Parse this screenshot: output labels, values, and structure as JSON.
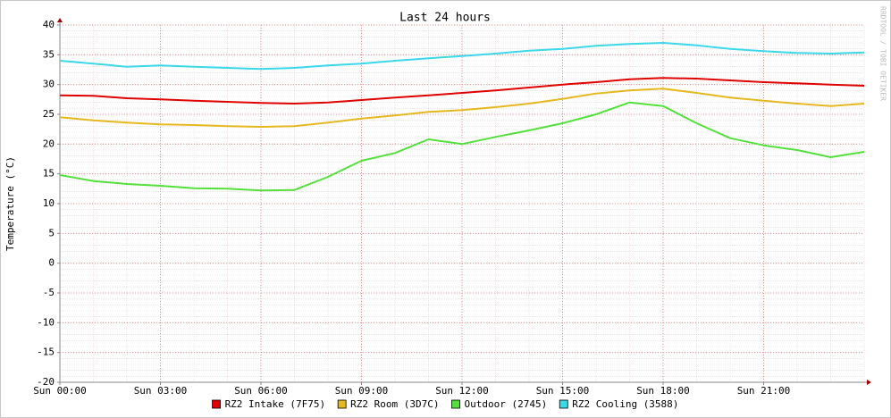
{
  "chart_data": {
    "type": "line",
    "title": "Last 24 hours",
    "y_label": "Temperature (°C)",
    "watermark": "RRDTOOL / TOBI OETIKER",
    "x": [
      0,
      1,
      2,
      3,
      4,
      5,
      6,
      7,
      8,
      9,
      10,
      11,
      12,
      13,
      14,
      15,
      16,
      17,
      18,
      19,
      20,
      21,
      22,
      23,
      24
    ],
    "xlim": [
      0,
      24
    ],
    "xticks": [
      {
        "value": 0,
        "label": "Sun 00:00"
      },
      {
        "value": 3,
        "label": "Sun 03:00"
      },
      {
        "value": 6,
        "label": "Sun 06:00"
      },
      {
        "value": 9,
        "label": "Sun 09:00"
      },
      {
        "value": 12,
        "label": "Sun 12:00"
      },
      {
        "value": 15,
        "label": "Sun 15:00"
      },
      {
        "value": 18,
        "label": "Sun 18:00"
      },
      {
        "value": 21,
        "label": "Sun 21:00"
      }
    ],
    "ylim": [
      -20,
      40
    ],
    "yticks": [
      -20,
      -15,
      -10,
      -5,
      0,
      5,
      10,
      15,
      20,
      25,
      30,
      35,
      40
    ],
    "grid": true,
    "series": [
      {
        "name": "RZ2 Intake (7F75)",
        "color": "#e00000",
        "values": [
          28.2,
          28.1,
          27.7,
          27.5,
          27.3,
          27.1,
          26.9,
          26.8,
          27.0,
          27.4,
          27.8,
          28.2,
          28.6,
          29.0,
          29.5,
          30.0,
          30.4,
          30.9,
          31.1,
          31.0,
          30.7,
          30.4,
          30.2,
          30.0,
          29.8
        ]
      },
      {
        "name": "RZ2 Room (3D7C)",
        "color": "#e6b820",
        "values": [
          24.5,
          24.0,
          23.6,
          23.3,
          23.2,
          23.0,
          22.9,
          23.0,
          23.6,
          24.3,
          24.8,
          25.4,
          25.7,
          26.2,
          26.8,
          27.6,
          28.5,
          29.0,
          29.3,
          28.6,
          27.8,
          27.3,
          26.8,
          26.4,
          26.8
        ]
      },
      {
        "name": "Outdoor (2745)",
        "color": "#54e03c",
        "values": [
          14.8,
          13.8,
          13.3,
          13.0,
          12.6,
          12.5,
          12.2,
          12.3,
          14.5,
          17.2,
          18.5,
          20.8,
          20.0,
          21.2,
          22.3,
          23.5,
          25.0,
          27.0,
          26.4,
          23.5,
          21.0,
          19.8,
          19.0,
          17.8,
          18.7
        ]
      },
      {
        "name": "RZ2 Cooling (3588)",
        "color": "#3ad8e8",
        "values": [
          34.0,
          33.5,
          33.0,
          33.2,
          33.0,
          32.8,
          32.6,
          32.8,
          33.2,
          33.5,
          34.0,
          34.4,
          34.8,
          35.2,
          35.7,
          36.0,
          36.5,
          36.8,
          37.0,
          36.6,
          36.0,
          35.6,
          35.3,
          35.2,
          35.4
        ]
      }
    ]
  }
}
